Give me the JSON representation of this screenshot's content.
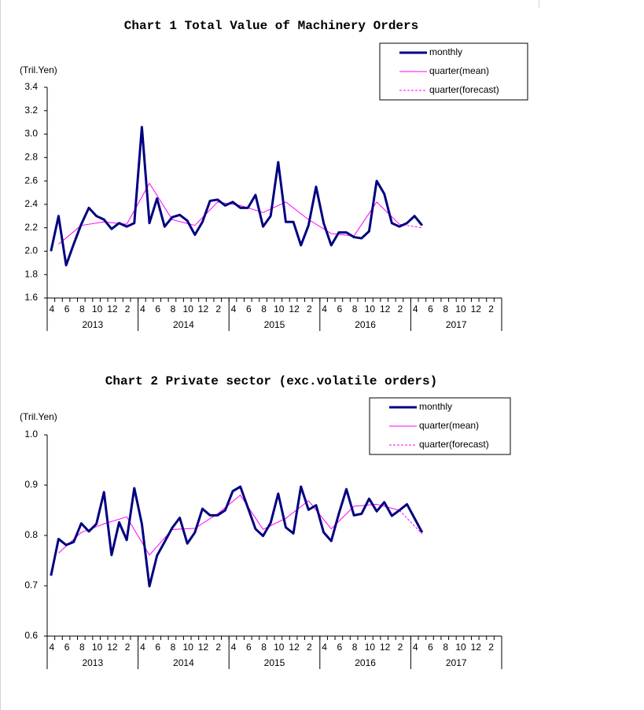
{
  "chart_data": [
    {
      "type": "line",
      "title": "Chart 1 Total Value of Machinery Orders",
      "y_unit": "(Tril.Yen)",
      "categories": [
        "4",
        null,
        "6",
        null,
        "8",
        null,
        "10",
        null,
        "12",
        null,
        "2",
        null,
        "4",
        null,
        "6",
        null,
        "8",
        null,
        "10",
        null,
        "12",
        null,
        "2",
        null,
        "4",
        null,
        "6",
        null,
        "8",
        null,
        "10",
        null,
        "12",
        null,
        "2",
        null,
        "4",
        null,
        "6",
        null,
        "8",
        null,
        "10",
        null,
        "12",
        null,
        "2",
        null,
        "4",
        null,
        "6",
        null,
        "8",
        null,
        "10",
        null,
        "12",
        null,
        "2",
        null
      ],
      "year_labels": [
        "2013",
        "2014",
        "2015",
        "2016",
        "2017"
      ],
      "ylim": [
        1.6,
        3.4
      ],
      "yticks": [
        1.6,
        1.8,
        {
          "value": 2,
          "label": "2.0"
        },
        2.2,
        2.4,
        2.6,
        2.8,
        {
          "value": 3,
          "label": "3.0"
        },
        3.2,
        3.4
      ],
      "grid": false,
      "legend": "upper right",
      "series": [
        {
          "name": "monthly",
          "color": "#000080",
          "values": [
            2.0,
            2.3,
            1.88,
            2.06,
            2.23,
            2.37,
            2.3,
            2.27,
            2.19,
            2.24,
            2.21,
            2.24,
            3.06,
            2.24,
            2.45,
            2.21,
            2.29,
            2.31,
            2.26,
            2.14,
            2.25,
            2.43,
            2.44,
            2.39,
            2.42,
            2.37,
            2.37,
            2.48,
            2.21,
            2.3,
            2.76,
            2.25,
            2.25,
            2.05,
            2.22,
            2.55,
            2.24,
            2.05,
            2.16,
            2.16,
            2.12,
            2.11,
            2.17,
            2.6,
            2.49,
            2.24,
            2.21,
            2.24,
            2.3,
            2.22,
            null,
            null,
            null,
            null,
            null,
            null,
            null,
            null,
            null,
            null
          ]
        },
        {
          "name": "quarter(mean)",
          "color": "#ff00ff",
          "values": [
            null,
            2.06,
            null,
            null,
            2.22,
            null,
            null,
            2.25,
            null,
            null,
            2.23,
            null,
            null,
            2.58,
            null,
            null,
            2.27,
            null,
            null,
            2.22,
            null,
            null,
            2.42,
            null,
            null,
            2.39,
            null,
            null,
            2.33,
            null,
            null,
            2.42,
            null,
            null,
            2.27,
            null,
            null,
            2.15,
            null,
            null,
            2.13,
            null,
            null,
            2.42,
            null,
            null,
            2.23,
            null,
            null,
            null,
            null,
            null,
            null,
            null,
            null,
            null,
            null,
            null,
            null,
            null
          ]
        },
        {
          "name": "quarter(forecast)",
          "color": "#ff00ff",
          "dashed": true,
          "values": [
            null,
            null,
            null,
            null,
            null,
            null,
            null,
            null,
            null,
            null,
            null,
            null,
            null,
            null,
            null,
            null,
            null,
            null,
            null,
            null,
            null,
            null,
            null,
            null,
            null,
            null,
            null,
            null,
            null,
            null,
            null,
            null,
            null,
            null,
            null,
            null,
            null,
            null,
            null,
            null,
            null,
            null,
            null,
            null,
            null,
            null,
            2.23,
            null,
            null,
            2.2,
            null,
            null,
            null,
            null,
            null,
            null,
            null,
            null,
            null,
            null
          ]
        }
      ]
    },
    {
      "type": "line",
      "title": "Chart 2 Private sector (exc.volatile orders)",
      "y_unit": "(Tril.Yen)",
      "categories": [
        "4",
        null,
        "6",
        null,
        "8",
        null,
        "10",
        null,
        "12",
        null,
        "2",
        null,
        "4",
        null,
        "6",
        null,
        "8",
        null,
        "10",
        null,
        "12",
        null,
        "2",
        null,
        "4",
        null,
        "6",
        null,
        "8",
        null,
        "10",
        null,
        "12",
        null,
        "2",
        null,
        "4",
        null,
        "6",
        null,
        "8",
        null,
        "10",
        null,
        "12",
        null,
        "2",
        null,
        "4",
        null,
        "6",
        null,
        "8",
        null,
        "10",
        null,
        "12",
        null,
        "2",
        null
      ],
      "year_labels": [
        "2013",
        "2014",
        "2015",
        "2016",
        "2017"
      ],
      "ylim": [
        0.6,
        1.0
      ],
      "yticks": [
        0.6,
        0.7,
        0.8,
        0.9,
        {
          "value": 1,
          "label": "1.0"
        }
      ],
      "grid": false,
      "legend": "upper right",
      "series": [
        {
          "name": "monthly",
          "color": "#000080",
          "values": [
            0.72,
            0.793,
            0.781,
            0.787,
            0.824,
            0.808,
            0.823,
            0.886,
            0.761,
            0.826,
            0.791,
            0.894,
            0.823,
            0.699,
            0.76,
            0.787,
            0.815,
            0.835,
            0.784,
            0.806,
            0.853,
            0.84,
            0.84,
            0.85,
            0.888,
            0.897,
            0.855,
            0.813,
            0.799,
            0.825,
            0.883,
            0.816,
            0.804,
            0.897,
            0.851,
            0.86,
            0.806,
            0.789,
            0.843,
            0.892,
            0.84,
            0.843,
            0.873,
            0.848,
            0.866,
            0.839,
            0.85,
            0.862,
            0.834,
            0.806,
            null,
            null,
            null,
            null,
            null,
            null,
            null,
            null,
            null,
            null
          ]
        },
        {
          "name": "quarter(mean)",
          "color": "#ff00ff",
          "values": [
            null,
            0.765,
            null,
            null,
            0.806,
            null,
            null,
            0.823,
            null,
            null,
            0.837,
            null,
            null,
            0.761,
            null,
            null,
            0.812,
            null,
            null,
            0.814,
            null,
            null,
            0.843,
            null,
            null,
            0.88,
            null,
            null,
            0.812,
            null,
            null,
            0.834,
            null,
            null,
            0.869,
            null,
            null,
            0.813,
            null,
            null,
            0.858,
            null,
            null,
            0.862,
            null,
            null,
            0.85,
            null,
            null,
            null,
            null,
            null,
            null,
            null,
            null,
            null,
            null,
            null,
            null,
            null
          ]
        },
        {
          "name": "quarter(forecast)",
          "color": "#ff00ff",
          "dashed": true,
          "values": [
            null,
            null,
            null,
            null,
            null,
            null,
            null,
            null,
            null,
            null,
            null,
            null,
            null,
            null,
            null,
            null,
            null,
            null,
            null,
            null,
            null,
            null,
            null,
            null,
            null,
            null,
            null,
            null,
            null,
            null,
            null,
            null,
            null,
            null,
            null,
            null,
            null,
            null,
            null,
            null,
            null,
            null,
            null,
            null,
            null,
            null,
            0.85,
            null,
            null,
            0.803,
            null,
            null,
            null,
            null,
            null,
            null,
            null,
            null,
            null,
            null
          ]
        }
      ]
    }
  ]
}
